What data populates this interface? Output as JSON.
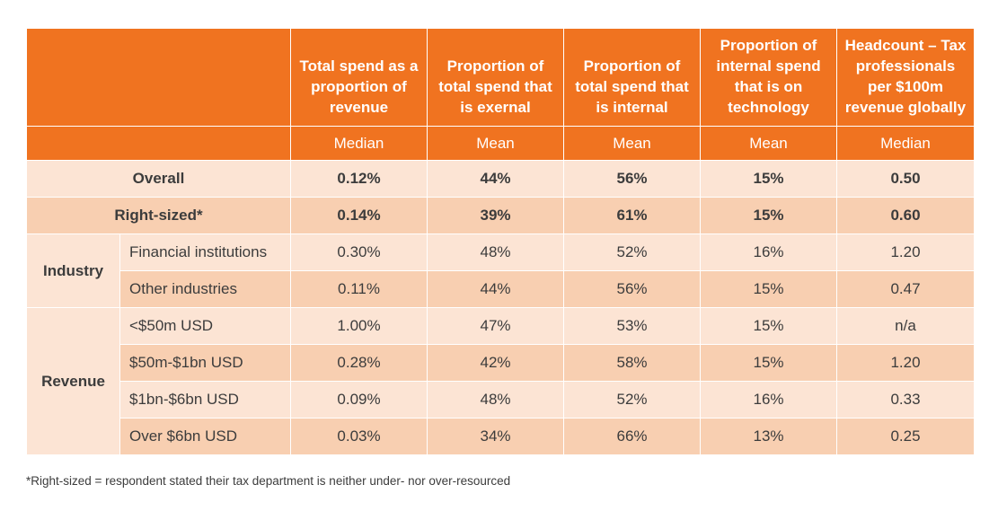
{
  "table": {
    "columns": [
      "Total spend as a proportion of revenue",
      "Proportion of total spend that is exernal",
      "Proportion of total spend that is internal",
      "Proportion of internal spend that is on technology",
      "Headcount – Tax professionals per $100m revenue globally"
    ],
    "stats": [
      "Median",
      "Mean",
      "Mean",
      "Mean",
      "Median"
    ],
    "overall": {
      "label": "Overall",
      "values": [
        "0.12%",
        "44%",
        "56%",
        "15%",
        "0.50"
      ]
    },
    "rightsized": {
      "label": "Right-sized*",
      "values": [
        "0.14%",
        "39%",
        "61%",
        "15%",
        "0.60"
      ]
    },
    "industry": {
      "label": "Industry",
      "rows": [
        {
          "label": "Financial institutions",
          "values": [
            "0.30%",
            "48%",
            "52%",
            "16%",
            "1.20"
          ]
        },
        {
          "label": "Other industries",
          "values": [
            "0.11%",
            "44%",
            "56%",
            "15%",
            "0.47"
          ]
        }
      ]
    },
    "revenue": {
      "label": "Revenue",
      "rows": [
        {
          "label": "<$50m USD",
          "values": [
            "1.00%",
            "47%",
            "53%",
            "15%",
            "n/a"
          ]
        },
        {
          "label": "$50m-$1bn USD",
          "values": [
            "0.28%",
            "42%",
            "58%",
            "15%",
            "1.20"
          ]
        },
        {
          "label": "$1bn-$6bn USD",
          "values": [
            "0.09%",
            "48%",
            "52%",
            "16%",
            "0.33"
          ]
        },
        {
          "label": "Over $6bn USD",
          "values": [
            "0.03%",
            "34%",
            "66%",
            "13%",
            "0.25"
          ]
        }
      ]
    }
  },
  "footnote": "*Right-sized = respondent stated their tax department is neither under- nor over-resourced",
  "colors": {
    "header": "#f07320",
    "light": "#fce4d4",
    "dark": "#f8cfb1",
    "text": "#3c3c3c"
  }
}
